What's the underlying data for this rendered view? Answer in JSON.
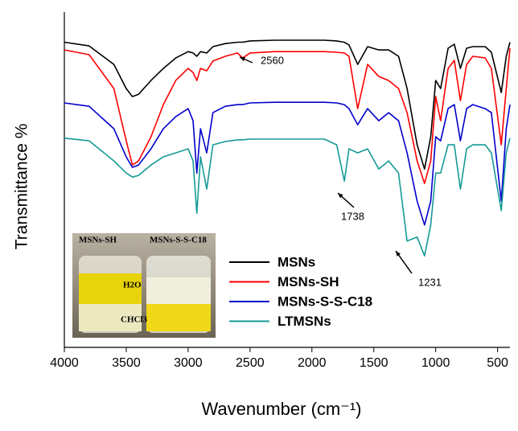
{
  "chart_data": {
    "type": "line",
    "y_label": "Transmittance %",
    "x_label": "Wavenumber (cm⁻¹)",
    "x": [
      4000,
      3800,
      3600,
      3500,
      3450,
      3400,
      3300,
      3200,
      3100,
      3000,
      2960,
      2930,
      2900,
      2850,
      2800,
      2700,
      2600,
      2560,
      2500,
      2300,
      2100,
      2000,
      1900,
      1800,
      1738,
      1700,
      1630,
      1550,
      1460,
      1380,
      1300,
      1231,
      1150,
      1090,
      1040,
      1000,
      960,
      900,
      850,
      800,
      750,
      700,
      600,
      550,
      470,
      430,
      400
    ],
    "series": [
      {
        "name": "MSNs",
        "color": "#000000",
        "values": [
          91.0,
          89.9,
          84.4,
          77.2,
          74.8,
          75.5,
          79.6,
          83.2,
          86.3,
          88.2,
          87.8,
          86.8,
          88.2,
          87.8,
          89.7,
          90.6,
          91.0,
          91.0,
          91.4,
          91.6,
          91.6,
          91.6,
          91.6,
          91.4,
          91.0,
          90.2,
          84.4,
          89.7,
          88.7,
          88.7,
          86.8,
          77.2,
          60.4,
          53.2,
          62.8,
          79.6,
          77.2,
          89.2,
          90.4,
          83.2,
          89.2,
          89.7,
          89.7,
          88.0,
          76.0,
          86.8,
          91.0
        ]
      },
      {
        "name": "MSNs-SH",
        "color": "#ff0000",
        "values": [
          88.7,
          87.3,
          77.2,
          61.6,
          54.4,
          55.6,
          62.8,
          72.4,
          79.6,
          83.2,
          82.0,
          79.6,
          83.2,
          82.5,
          85.4,
          86.8,
          87.8,
          86.3,
          87.8,
          88.2,
          88.2,
          88.2,
          88.2,
          88.0,
          87.8,
          86.8,
          71.2,
          84.4,
          80.8,
          79.6,
          77.2,
          70.0,
          55.6,
          48.9,
          55.6,
          74.8,
          67.6,
          83.2,
          85.6,
          73.6,
          84.4,
          86.8,
          86.3,
          83.2,
          60.4,
          77.2,
          89.2
        ]
      },
      {
        "name": "MSNs-S-S-C18",
        "color": "#0000cc",
        "values": [
          72.9,
          71.9,
          65.2,
          56.8,
          53.7,
          54.4,
          59.2,
          65.2,
          68.8,
          71.2,
          67.6,
          52.0,
          65.2,
          58.0,
          70.0,
          71.9,
          72.4,
          72.4,
          72.9,
          73.1,
          73.1,
          73.1,
          73.1,
          72.9,
          72.4,
          71.2,
          66.4,
          71.2,
          67.6,
          70.0,
          67.6,
          58.0,
          43.6,
          36.5,
          43.6,
          62.8,
          61.6,
          71.2,
          72.4,
          61.6,
          71.2,
          72.4,
          71.2,
          70.0,
          43.6,
          65.2,
          72.4
        ]
      },
      {
        "name": "LTMSNs",
        "color": "#169a96",
        "values": [
          62.4,
          61.6,
          55.6,
          52.0,
          50.8,
          51.3,
          54.4,
          56.8,
          58.0,
          59.2,
          55.6,
          40.0,
          56.8,
          47.2,
          60.4,
          61.4,
          61.9,
          61.9,
          62.1,
          62.1,
          62.1,
          62.1,
          62.1,
          60.4,
          49.6,
          59.2,
          58.0,
          59.2,
          53.2,
          55.6,
          52.0,
          31.7,
          32.9,
          27.3,
          36.5,
          52.0,
          52.0,
          60.4,
          60.4,
          47.2,
          59.2,
          60.4,
          60.4,
          58.0,
          40.8,
          58.0,
          62.4
        ]
      }
    ],
    "xlim": [
      4000,
      400
    ],
    "xticks": [
      4000,
      3500,
      3000,
      2500,
      2000,
      1500,
      1000,
      500
    ],
    "ylim": [
      0,
      100
    ],
    "annotations": [
      "2560",
      "1738",
      "1231"
    ],
    "inset_labels": [
      "MSNs-SH",
      "MSNs-S-S-C18",
      "H2O",
      "CHCl3"
    ],
    "legend": "lower right"
  }
}
